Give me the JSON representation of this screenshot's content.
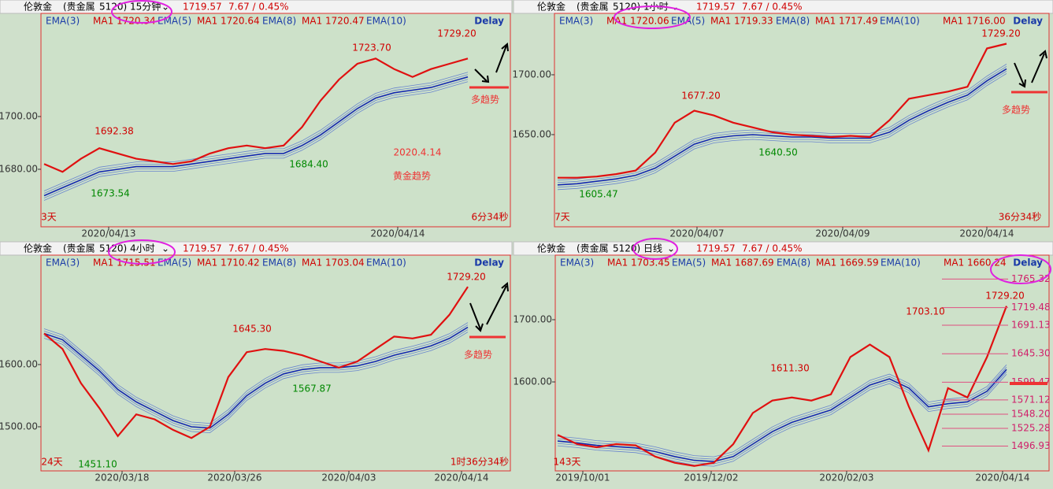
{
  "panels": [
    {
      "header": {
        "symbol": "伦敦金",
        "category": "(贵金属",
        "code": "5120)",
        "timeframe": "15分钟",
        "price": "1719.57",
        "change": "7.67 / 0.45%"
      },
      "legend": [
        "EMA(3)",
        "MA1 1720.34",
        "EMA(5)",
        "MA1 1720.64",
        "EMA(8)",
        "MA1 1720.47",
        "EMA(10)"
      ],
      "delay": "Delay",
      "ylim": [
        1658.2,
        1739.1
      ],
      "yticks": [
        {
          "value": 1680,
          "label": "1680.00"
        },
        {
          "value": 1700,
          "label": "1700.00"
        }
      ],
      "x_labels": [
        "2020/04/13",
        "2020/04/14"
      ],
      "annotations": [
        "1723.70",
        "1729.20",
        "1692.38",
        "1673.54",
        "1684.40",
        "3天",
        "6分34秒",
        "2020.4.14",
        "黄金趋势",
        "多趋势"
      ],
      "closes": [
        1682,
        1679,
        1684,
        1688,
        1686,
        1684,
        1683,
        1682,
        1683,
        1686,
        1688,
        1689,
        1688,
        1689,
        1696,
        1706,
        1714,
        1720,
        1722,
        1718,
        1715,
        1718,
        1720,
        1722
      ],
      "ema": [
        1670,
        1673,
        1676,
        1679,
        1680,
        1681,
        1681,
        1681,
        1682,
        1683,
        1684,
        1685,
        1686,
        1686,
        1689,
        1693,
        1698,
        1703,
        1707,
        1709,
        1710,
        1711,
        1713,
        1715
      ]
    },
    {
      "header": {
        "symbol": "伦敦金",
        "category": "(贵金属",
        "code": "5120)",
        "timeframe": "1小时",
        "price": "1719.57",
        "change": "7.67 / 0.45%"
      },
      "legend": [
        "EMA(3)",
        "MA1 1720.06",
        "EMA(5)",
        "MA1 1719.33",
        "EMA(8)",
        "MA1 1717.49",
        "EMA(10)",
        "MA1 1716.00"
      ],
      "delay": "Delay",
      "ylim": [
        1573.0,
        1751.3
      ],
      "yticks": [
        {
          "value": 1650,
          "label": "1650.00"
        },
        {
          "value": 1700,
          "label": "1700.00"
        }
      ],
      "x_labels": [
        "2020/04/07",
        "2020/04/09",
        "2020/04/14"
      ],
      "annotations": [
        "1729.20",
        "1677.20",
        "1640.50",
        "1605.47",
        "7天",
        "36分34秒",
        "多趋势"
      ],
      "closes": [
        1614,
        1614,
        1615,
        1617,
        1620,
        1635,
        1660,
        1670,
        1666,
        1660,
        1656,
        1652,
        1650,
        1649,
        1648,
        1649,
        1648,
        1662,
        1680,
        1683,
        1686,
        1690,
        1722,
        1726
      ],
      "ema": [
        1608,
        1609,
        1611,
        1613,
        1616,
        1622,
        1632,
        1642,
        1647,
        1649,
        1650,
        1649,
        1648,
        1648,
        1647,
        1647,
        1647,
        1652,
        1662,
        1670,
        1677,
        1683,
        1695,
        1705
      ]
    },
    {
      "header": {
        "symbol": "伦敦金",
        "category": "(贵金属",
        "code": "5120)",
        "timeframe": "4小时",
        "price": "1719.57",
        "change": "7.67 / 0.45%"
      },
      "legend": [
        "EMA(3)",
        "MA1 1715.51",
        "EMA(5)",
        "MA1 1710.42",
        "EMA(8)",
        "MA1 1703.04",
        "EMA(10)"
      ],
      "delay": "Delay",
      "ylim": [
        1429.1,
        1775.9
      ],
      "yticks": [
        {
          "value": 1500,
          "label": "1500.00"
        },
        {
          "value": 1600,
          "label": "1600.00"
        }
      ],
      "x_labels": [
        "2020/03/18",
        "2020/03/26",
        "2020/04/03",
        "2020/04/14"
      ],
      "annotations": [
        "1729.20",
        "1645.30",
        "1567.87",
        "1451.10",
        "24天",
        "1时36分34秒",
        "多趋势"
      ],
      "closes": [
        1650,
        1625,
        1570,
        1530,
        1485,
        1520,
        1512,
        1495,
        1482,
        1500,
        1580,
        1620,
        1625,
        1622,
        1615,
        1605,
        1595,
        1605,
        1625,
        1645,
        1642,
        1648,
        1680,
        1725
      ],
      "ema": [
        1650,
        1640,
        1615,
        1590,
        1560,
        1540,
        1525,
        1510,
        1500,
        1498,
        1520,
        1550,
        1570,
        1585,
        1592,
        1595,
        1595,
        1598,
        1605,
        1615,
        1622,
        1630,
        1642,
        1660
      ]
    },
    {
      "header": {
        "symbol": "伦敦金",
        "category": "(贵金属",
        "code": "5120)",
        "timeframe": "日线",
        "price": "1719.57",
        "change": "7.67 / 0.45%"
      },
      "legend": [
        "EMA(3)",
        "MA1 1703.45",
        "EMA(5)",
        "MA1 1687.69",
        "EMA(8)",
        "MA1 1669.59",
        "EMA(10)",
        "MA1 1660.24"
      ],
      "delay": "Delay",
      "ylim": [
        1457.0,
        1803.8
      ],
      "yticks": [
        {
          "value": 1600,
          "label": "1600.00"
        },
        {
          "value": 1700,
          "label": "1700.00"
        }
      ],
      "x_labels": [
        "2019/10/01",
        "2019/12/02",
        "2020/02/03",
        "2020/04/14"
      ],
      "annotations": [
        "1729.20",
        "1703.10",
        "1611.30",
        "143天"
      ],
      "levels": [
        {
          "value": 1765.32,
          "label": "1765.32"
        },
        {
          "value": 1719.48,
          "label": "1719.48"
        },
        {
          "value": 1691.13,
          "label": "1691.13"
        },
        {
          "value": 1645.3,
          "label": "1645.30"
        },
        {
          "value": 1599.47,
          "label": "1599.47"
        },
        {
          "value": 1571.12,
          "label": "1571.12"
        },
        {
          "value": 1548.2,
          "label": "1548.20"
        },
        {
          "value": 1525.28,
          "label": "1525.28"
        },
        {
          "value": 1496.93,
          "label": "1496.93"
        }
      ],
      "closes": [
        1515,
        1500,
        1495,
        1500,
        1498,
        1480,
        1470,
        1465,
        1470,
        1500,
        1550,
        1570,
        1575,
        1570,
        1580,
        1640,
        1660,
        1640,
        1560,
        1490,
        1590,
        1575,
        1640,
        1722
      ],
      "ema": [
        1505,
        1502,
        1498,
        1496,
        1494,
        1488,
        1480,
        1474,
        1472,
        1480,
        1500,
        1520,
        1535,
        1545,
        1555,
        1575,
        1595,
        1605,
        1590,
        1560,
        1565,
        1568,
        1585,
        1620
      ]
    }
  ]
}
